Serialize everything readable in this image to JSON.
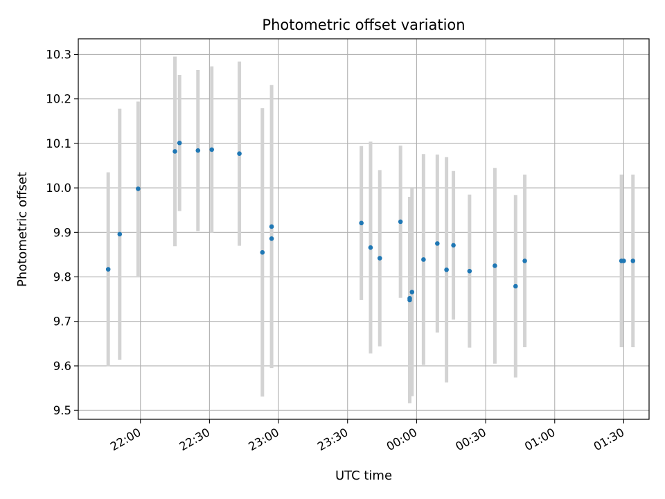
{
  "chart_data": {
    "type": "scatter",
    "title": "Photometric offset variation",
    "xlabel": "UTC time",
    "ylabel": "Photometric offset",
    "x_unit": "UTC time",
    "x_tick_labels": [
      "22:00",
      "22:30",
      "23:00",
      "23:30",
      "00:00",
      "00:30",
      "01:00",
      "01:30"
    ],
    "x_ticks": [
      "21:59",
      "22:29",
      "22:59",
      "23:29",
      "23:59",
      "00:29",
      "00:59",
      "01:29"
    ],
    "xlim": [
      "21:32",
      "01:40"
    ],
    "y_tick_labels": [
      "9.5",
      "9.6",
      "9.7",
      "9.8",
      "9.9",
      "10.0",
      "10.1",
      "10.2",
      "10.3"
    ],
    "ylim": [
      9.48,
      10.335
    ],
    "grid": true,
    "marker_color": "#1f77b4",
    "errorbar_color": "#d3d3d3",
    "points": [
      {
        "x": "21:45",
        "y": 9.817,
        "err": 0.218
      },
      {
        "x": "21:50",
        "y": 9.896,
        "err": 0.282
      },
      {
        "x": "21:58",
        "y": 9.998,
        "err": 0.196
      },
      {
        "x": "22:14",
        "y": 10.082,
        "err": 0.213
      },
      {
        "x": "22:16",
        "y": 10.101,
        "err": 0.153
      },
      {
        "x": "22:24",
        "y": 10.084,
        "err": 0.181
      },
      {
        "x": "22:30",
        "y": 10.086,
        "err": 0.187
      },
      {
        "x": "22:42",
        "y": 10.077,
        "err": 0.207
      },
      {
        "x": "22:52",
        "y": 9.855,
        "err": 0.324
      },
      {
        "x": "22:56",
        "y": 9.886,
        "err": 0.0
      },
      {
        "x": "22:56",
        "y": 9.913,
        "err": 0.318
      },
      {
        "x": "23:35",
        "y": 9.921,
        "err": 0.173
      },
      {
        "x": "23:39",
        "y": 9.866,
        "err": 0.238
      },
      {
        "x": "23:43",
        "y": 9.842,
        "err": 0.198
      },
      {
        "x": "23:52",
        "y": 9.924,
        "err": 0.171
      },
      {
        "x": "23:56",
        "y": 9.748,
        "err": 0.232
      },
      {
        "x": "23:56",
        "y": 9.752,
        "err": 0.0
      },
      {
        "x": "23:57",
        "y": 9.766,
        "err": 0.234
      },
      {
        "x": "00:02",
        "y": 9.839,
        "err": 0.237
      },
      {
        "x": "00:08",
        "y": 9.875,
        "err": 0.2
      },
      {
        "x": "00:12",
        "y": 9.816,
        "err": 0.253
      },
      {
        "x": "00:15",
        "y": 9.871,
        "err": 0.167
      },
      {
        "x": "00:22",
        "y": 9.813,
        "err": 0.172
      },
      {
        "x": "00:33",
        "y": 9.825,
        "err": 0.22
      },
      {
        "x": "00:42",
        "y": 9.779,
        "err": 0.205
      },
      {
        "x": "00:46",
        "y": 9.836,
        "err": 0.194
      },
      {
        "x": "01:28",
        "y": 9.836,
        "err": 0.194
      },
      {
        "x": "01:29",
        "y": 9.836,
        "err": 0.0
      },
      {
        "x": "01:33",
        "y": 9.836,
        "err": 0.194
      }
    ]
  }
}
